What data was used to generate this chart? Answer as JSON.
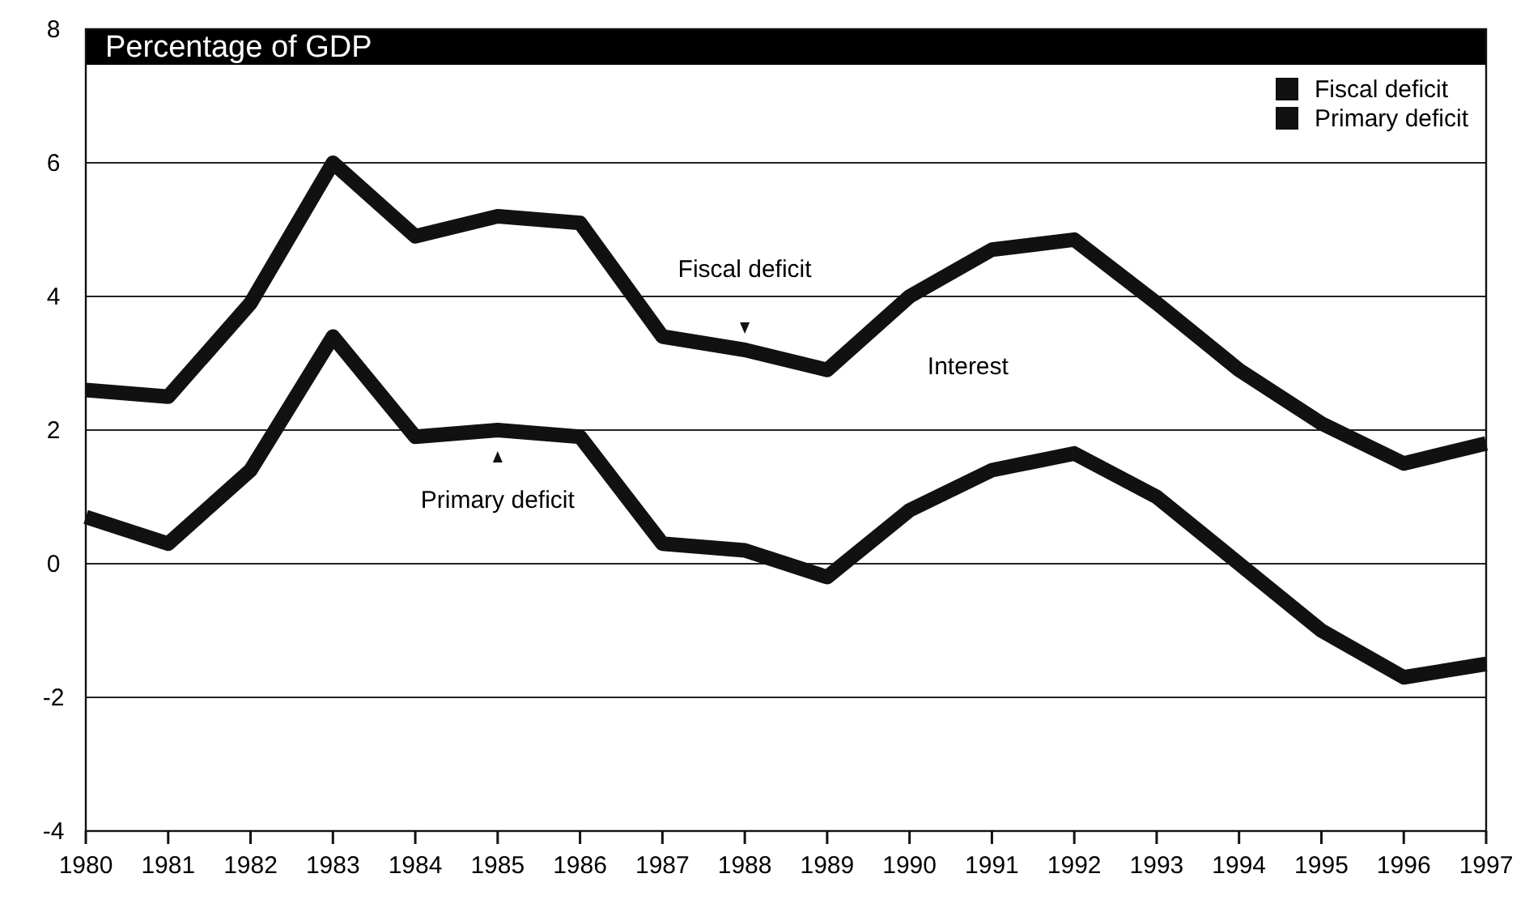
{
  "chart_data": {
    "type": "line",
    "title": "Percentage of GDP",
    "x": [
      1980,
      1981,
      1982,
      1983,
      1984,
      1985,
      1986,
      1987,
      1988,
      1989,
      1990,
      1991,
      1992,
      1993,
      1994,
      1995,
      1996,
      1997
    ],
    "series": [
      {
        "name": "Fiscal deficit",
        "color": "#111111",
        "values": [
          2.6,
          2.5,
          3.9,
          6.0,
          4.9,
          5.2,
          5.1,
          3.4,
          3.2,
          2.9,
          4.0,
          4.7,
          4.85,
          3.9,
          2.9,
          2.1,
          1.5,
          1.8
        ]
      },
      {
        "name": "Primary deficit",
        "color": "#111111",
        "values": [
          0.7,
          0.3,
          1.4,
          3.4,
          1.9,
          2.0,
          1.9,
          0.3,
          0.2,
          -0.2,
          0.8,
          1.4,
          1.65,
          1.0,
          0.0,
          -1.0,
          -1.7,
          -1.5
        ]
      }
    ],
    "annotations": [
      {
        "text": "Fiscal deficit",
        "x": 1988,
        "y": 3.2
      },
      "Interest",
      {
        "text": "Primary deficit",
        "x": 1985,
        "y": 2.0
      }
    ],
    "xlim": [
      1980,
      1997
    ],
    "xticks": [
      1980,
      1981,
      1982,
      1983,
      1984,
      1985,
      1986,
      1987,
      1988,
      1989,
      1990,
      1991,
      1992,
      1993,
      1994,
      1995,
      1996,
      1997
    ],
    "ylim": [
      -4,
      8
    ],
    "yticks": [
      -4,
      -2,
      0,
      2,
      4,
      6,
      8
    ],
    "grid": "y",
    "legend": "top right",
    "marker": "none",
    "line_style": "solid"
  }
}
